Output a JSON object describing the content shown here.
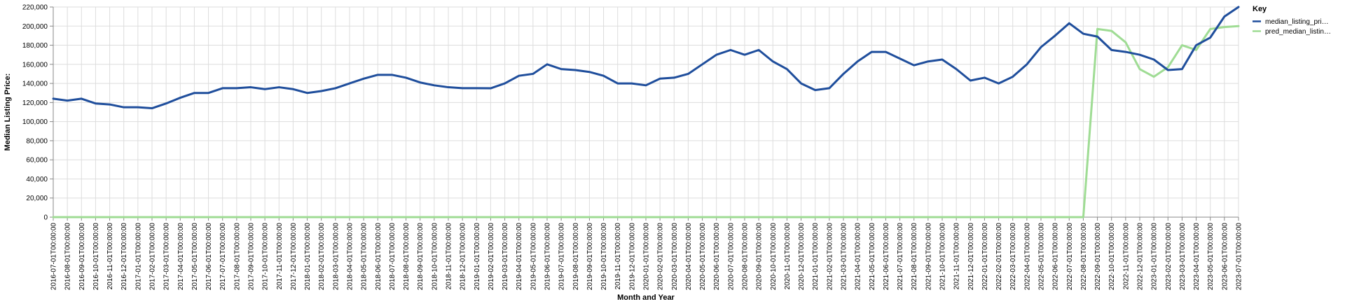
{
  "chart_data": {
    "type": "line",
    "xlabel": "Month and Year",
    "ylabel": "Median Listing Price:",
    "ylim": [
      0,
      220000
    ],
    "y_ticks": [
      "0",
      "20,000",
      "40,000",
      "60,000",
      "80,000",
      "100,000",
      "120,000",
      "140,000",
      "160,000",
      "180,000",
      "200,000",
      "220,000"
    ],
    "grid": true,
    "legend": {
      "title": "Key",
      "placement": "top-right"
    },
    "x": [
      "2016-07-01T00:00:00",
      "2016-08-01T00:00:00",
      "2016-09-01T00:00:00",
      "2016-10-01T00:00:00",
      "2016-11-01T00:00:00",
      "2016-12-01T00:00:00",
      "2017-01-01T00:00:00",
      "2017-02-01T00:00:00",
      "2017-03-01T00:00:00",
      "2017-04-01T00:00:00",
      "2017-05-01T00:00:00",
      "2017-06-01T00:00:00",
      "2017-07-01T00:00:00",
      "2017-08-01T00:00:00",
      "2017-09-01T00:00:00",
      "2017-10-01T00:00:00",
      "2017-11-01T00:00:00",
      "2017-12-01T00:00:00",
      "2018-01-01T00:00:00",
      "2018-02-01T00:00:00",
      "2018-03-01T00:00:00",
      "2018-04-01T00:00:00",
      "2018-05-01T00:00:00",
      "2018-06-01T00:00:00",
      "2018-07-01T00:00:00",
      "2018-08-01T00:00:00",
      "2018-09-01T00:00:00",
      "2018-10-01T00:00:00",
      "2018-11-01T00:00:00",
      "2018-12-01T00:00:00",
      "2019-01-01T00:00:00",
      "2019-02-01T00:00:00",
      "2019-03-01T00:00:00",
      "2019-04-01T00:00:00",
      "2019-05-01T00:00:00",
      "2019-06-01T00:00:00",
      "2019-07-01T00:00:00",
      "2019-08-01T00:00:00",
      "2019-09-01T00:00:00",
      "2019-10-01T00:00:00",
      "2019-11-01T00:00:00",
      "2019-12-01T00:00:00",
      "2020-01-01T00:00:00",
      "2020-02-01T00:00:00",
      "2020-03-01T00:00:00",
      "2020-04-01T00:00:00",
      "2020-05-01T00:00:00",
      "2020-06-01T00:00:00",
      "2020-07-01T00:00:00",
      "2020-08-01T00:00:00",
      "2020-09-01T00:00:00",
      "2020-10-01T00:00:00",
      "2020-11-01T00:00:00",
      "2020-12-01T00:00:00",
      "2021-01-01T00:00:00",
      "2021-02-01T00:00:00",
      "2021-03-01T00:00:00",
      "2021-04-01T00:00:00",
      "2021-05-01T00:00:00",
      "2021-06-01T00:00:00",
      "2021-07-01T00:00:00",
      "2021-08-01T00:00:00",
      "2021-09-01T00:00:00",
      "2021-10-01T00:00:00",
      "2021-11-01T00:00:00",
      "2021-12-01T00:00:00",
      "2022-01-01T00:00:00",
      "2022-02-01T00:00:00",
      "2022-03-01T00:00:00",
      "2022-04-01T00:00:00",
      "2022-05-01T00:00:00",
      "2022-06-01T00:00:00",
      "2022-07-01T00:00:00",
      "2022-08-01T00:00:00",
      "2022-09-01T00:00:00",
      "2022-10-01T00:00:00",
      "2022-11-01T00:00:00",
      "2022-12-01T00:00:00",
      "2023-01-01T00:00:00",
      "2023-02-01T00:00:00",
      "2023-03-01T00:00:00",
      "2023-04-01T00:00:00",
      "2023-05-01T00:00:00",
      "2023-06-01T00:00:00",
      "2023-07-01T00:00:00"
    ],
    "series": [
      {
        "name": "median_listing_pri…",
        "color": "#1f4e9c",
        "values": [
          124000,
          122000,
          124000,
          119000,
          118000,
          115000,
          115000,
          114000,
          119000,
          125000,
          130000,
          130000,
          135000,
          135000,
          136000,
          134000,
          136000,
          134000,
          130000,
          132000,
          135000,
          140000,
          145000,
          149000,
          149000,
          146000,
          141000,
          138000,
          136000,
          135000,
          135000,
          134900,
          140000,
          148000,
          150000,
          160000,
          155000,
          154000,
          152000,
          148000,
          140000,
          140000,
          138000,
          145000,
          146000,
          150000,
          160000,
          170000,
          175000,
          170000,
          175000,
          163000,
          155000,
          140000,
          133000,
          135000,
          150000,
          163000,
          173000,
          173000,
          166000,
          159000,
          163000,
          165000,
          155000,
          143000,
          146000,
          140000,
          147000,
          160000,
          178000,
          190000,
          203000,
          192000,
          189000,
          175000,
          173000,
          170000,
          165000,
          154000,
          155000,
          180000,
          188000,
          210000,
          220000
        ]
      },
      {
        "name": "pred_median_listin…",
        "color": "#9fdc94",
        "values": [
          0,
          0,
          0,
          0,
          0,
          0,
          0,
          0,
          0,
          0,
          0,
          0,
          0,
          0,
          0,
          0,
          0,
          0,
          0,
          0,
          0,
          0,
          0,
          0,
          0,
          0,
          0,
          0,
          0,
          0,
          0,
          0,
          0,
          0,
          0,
          0,
          0,
          0,
          0,
          0,
          0,
          0,
          0,
          0,
          0,
          0,
          0,
          0,
          0,
          0,
          0,
          0,
          0,
          0,
          0,
          0,
          0,
          0,
          0,
          0,
          0,
          0,
          0,
          0,
          0,
          0,
          0,
          0,
          0,
          0,
          0,
          0,
          0,
          0,
          197000,
          195000,
          183000,
          155000,
          147000,
          157000,
          180000,
          175000,
          197000,
          199000,
          200000
        ]
      }
    ]
  }
}
